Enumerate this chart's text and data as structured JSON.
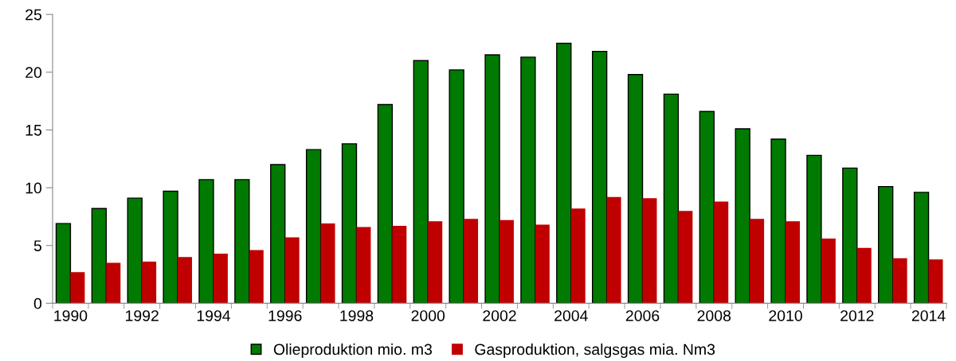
{
  "chart_data": {
    "type": "bar",
    "categories": [
      "1990",
      null,
      "1992",
      null,
      "1994",
      null,
      "1996",
      null,
      "1998",
      null,
      "2000",
      null,
      "2002",
      null,
      "2004",
      null,
      "2006",
      null,
      "2008",
      null,
      "2010",
      null,
      "2012",
      null,
      "2014"
    ],
    "series": [
      {
        "name": "Olieproduktion mio. m3",
        "color": "#007a00",
        "values": [
          6.9,
          8.2,
          9.1,
          9.7,
          10.7,
          10.7,
          12.0,
          13.3,
          13.8,
          17.2,
          21.0,
          20.2,
          21.5,
          21.3,
          22.5,
          21.8,
          19.8,
          18.1,
          16.6,
          15.1,
          14.2,
          12.8,
          11.7,
          10.1,
          9.6
        ]
      },
      {
        "name": "Gasproduktion, salgsgas mia. Nm3",
        "color": "#c00000",
        "values": [
          2.7,
          3.5,
          3.6,
          4.0,
          4.3,
          4.6,
          5.7,
          6.9,
          6.6,
          6.7,
          7.1,
          7.3,
          7.2,
          6.8,
          8.2,
          9.2,
          9.1,
          8.0,
          8.8,
          7.3,
          7.1,
          5.6,
          4.8,
          3.9,
          3.8
        ]
      }
    ],
    "ylim": [
      0,
      25
    ],
    "yticks": [
      0,
      5,
      10,
      15,
      20,
      25
    ],
    "grid": false,
    "legend": "bottom"
  }
}
